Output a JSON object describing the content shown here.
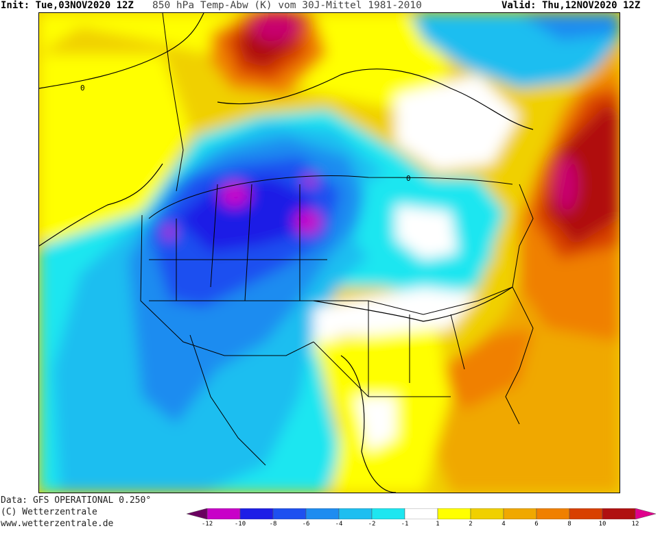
{
  "header": {
    "init": "Init: Tue,03NOV2020 12Z",
    "title": "850 hPa Temp-Abw (K) vom 30J-Mittel 1981-2010",
    "valid": "Valid: Thu,12NOV2020 12Z"
  },
  "map": {
    "region": "North America",
    "projection": "polar stereographic",
    "contour_label": "0"
  },
  "footer": {
    "data_source": "Data: GFS OPERATIONAL 0.250°",
    "copyright": "(C) Wetterzentrale",
    "website": "www.wetterzentrale.de"
  },
  "legend": {
    "ticks": [
      "-12",
      "-10",
      "-8",
      "-6",
      "-4",
      "-2",
      "-1",
      "1",
      "2",
      "4",
      "6",
      "8",
      "10",
      "12"
    ],
    "colors": [
      "#6a0060",
      "#c800c8",
      "#1e1ee6",
      "#1e50f0",
      "#1e8cf0",
      "#1ebef0",
      "#1ee6f0",
      "#ffffff",
      "#ffff00",
      "#f0d000",
      "#f0a800",
      "#f08000",
      "#d84000",
      "#b01010",
      "#e0008c"
    ]
  }
}
